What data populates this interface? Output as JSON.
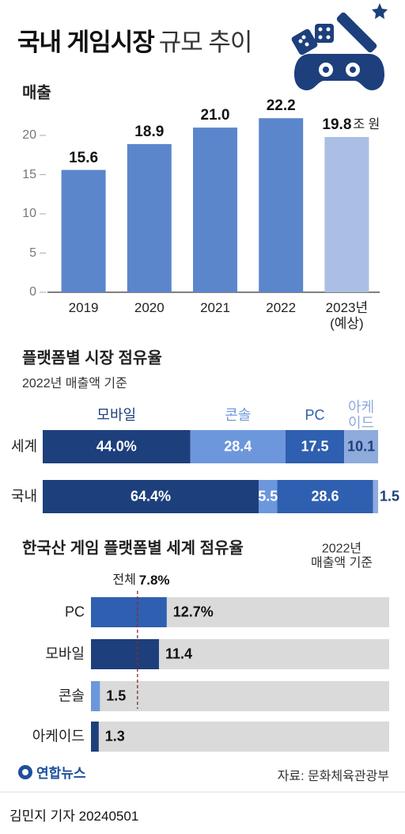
{
  "header": {
    "title": "국내 게임시장",
    "title_light": "규모 추이"
  },
  "chart_data": [
    {
      "type": "bar",
      "title": "매출",
      "categories": [
        "2019",
        "2020",
        "2021",
        "2022",
        "2023년\n(예상)"
      ],
      "values": [
        15.6,
        18.9,
        21.0,
        22.2,
        19.8
      ],
      "value_labels": [
        "15.6",
        "18.9",
        "21.0",
        "22.2",
        "19.8"
      ],
      "unit": "조 원",
      "colors": [
        "#5b86cc",
        "#5b86cc",
        "#5b86cc",
        "#5b86cc",
        "#aabfe3"
      ],
      "ylim": [
        0,
        25
      ],
      "yticks": [
        0,
        5,
        10,
        15,
        20
      ]
    },
    {
      "type": "stacked_barh",
      "title": "플랫폼별 시장 점유율",
      "subtitle": "2022년 매출액 기준",
      "categories": [
        "세계",
        "국내"
      ],
      "xlim": [
        0,
        100
      ],
      "series": [
        {
          "name": "모바일",
          "color": "#1d3f7c",
          "values": [
            44.0,
            64.4
          ],
          "value_labels": [
            "44.0%",
            "64.4%"
          ]
        },
        {
          "name": "콘솔",
          "color": "#6d97dc",
          "values": [
            28.4,
            5.5
          ],
          "value_labels": [
            "28.4",
            "5.5"
          ]
        },
        {
          "name": "PC",
          "color": "#2f5fb0",
          "values": [
            17.5,
            28.6
          ],
          "value_labels": [
            "17.5",
            "28.6"
          ]
        },
        {
          "name": "아케\n이드",
          "color": "#8fabdc",
          "values": [
            10.1,
            1.5
          ],
          "value_labels": [
            "10.1",
            "1.5"
          ]
        }
      ]
    },
    {
      "type": "barh",
      "title": "한국산 게임 플랫폼별 세계 점유율",
      "note": "2022년\n매출액 기준",
      "categories": [
        "PC",
        "모바일",
        "콘솔",
        "아케이드"
      ],
      "values": [
        12.7,
        11.4,
        1.5,
        1.3
      ],
      "value_labels": [
        "12.7%",
        "11.4",
        "1.5",
        "1.3"
      ],
      "colors": [
        "#2f5fb0",
        "#1d3f7c",
        "#6d97dc",
        "#1d3f7c"
      ],
      "xlim": [
        0,
        50
      ],
      "reference": {
        "label": "전체",
        "value": 7.8,
        "value_label": "7.8%"
      }
    }
  ],
  "footer": {
    "logo": "연합뉴스",
    "source": "자료: 문화체육관광부",
    "byline": "김민지 기자 20240501"
  }
}
